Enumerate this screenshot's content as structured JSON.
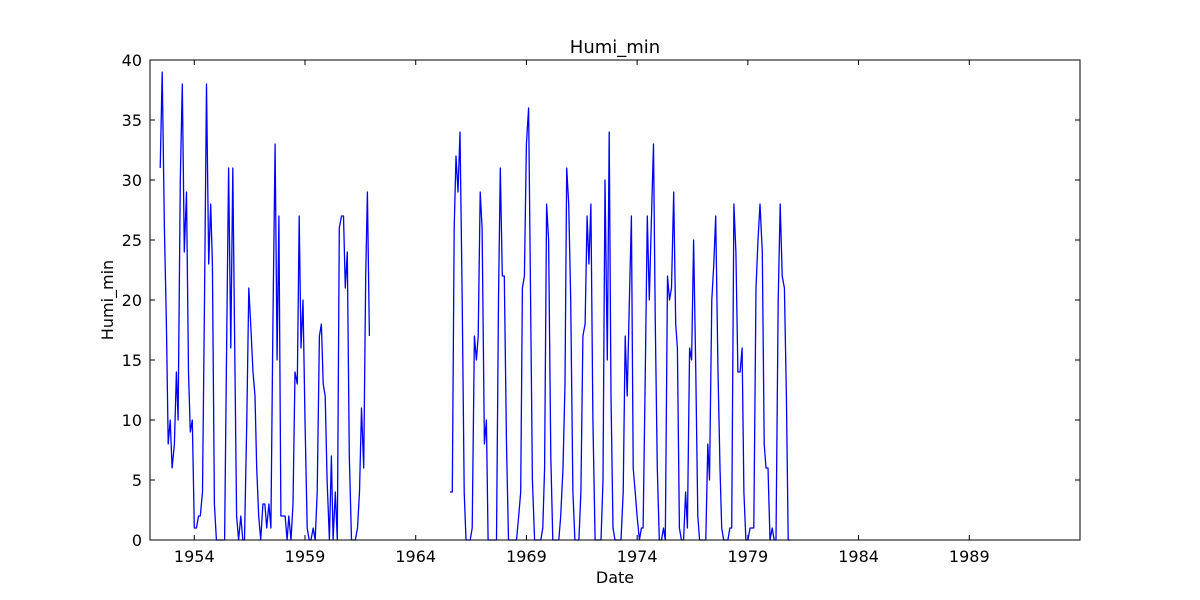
{
  "chart_data": {
    "type": "line",
    "title": "Humi_min",
    "xlabel": "Date",
    "ylabel": "Humi_min",
    "x_units": "year",
    "xlim": [
      1952.0,
      1994.0
    ],
    "ylim": [
      0,
      40
    ],
    "x_ticks": [
      1954,
      1959,
      1964,
      1969,
      1974,
      1979,
      1984,
      1989
    ],
    "y_ticks": [
      0,
      5,
      10,
      15,
      20,
      25,
      30,
      35,
      40
    ],
    "grid": false,
    "legend": "none",
    "color": "#0000ff",
    "series": [
      {
        "segments": [
          [
            [
              1952.46,
              31
            ],
            [
              1952.55,
              39
            ],
            [
              1952.65,
              26
            ],
            [
              1952.74,
              18
            ],
            [
              1952.82,
              8
            ],
            [
              1952.91,
              10
            ],
            [
              1953.0,
              6
            ],
            [
              1953.1,
              8
            ],
            [
              1953.19,
              14
            ],
            [
              1953.27,
              10
            ],
            [
              1953.37,
              30
            ],
            [
              1953.46,
              38
            ],
            [
              1953.55,
              24
            ],
            [
              1953.65,
              29
            ],
            [
              1953.74,
              14
            ],
            [
              1953.82,
              9
            ],
            [
              1953.91,
              10
            ],
            [
              1954.0,
              1
            ],
            [
              1954.1,
              1
            ],
            [
              1954.19,
              2
            ],
            [
              1954.27,
              2
            ],
            [
              1954.37,
              4
            ],
            [
              1954.46,
              20
            ],
            [
              1954.55,
              38
            ],
            [
              1954.65,
              23
            ],
            [
              1954.74,
              28
            ],
            [
              1954.82,
              23
            ],
            [
              1954.91,
              3
            ],
            [
              1955.0,
              0
            ],
            [
              1955.1,
              0
            ],
            [
              1955.19,
              0
            ],
            [
              1955.27,
              0
            ],
            [
              1955.37,
              0
            ],
            [
              1955.46,
              16
            ],
            [
              1955.55,
              31
            ],
            [
              1955.65,
              16
            ],
            [
              1955.74,
              31
            ],
            [
              1955.82,
              17
            ],
            [
              1955.91,
              2
            ],
            [
              1956.0,
              0
            ],
            [
              1956.1,
              2
            ],
            [
              1956.19,
              0
            ],
            [
              1956.27,
              0
            ],
            [
              1956.37,
              10
            ],
            [
              1956.46,
              21
            ],
            [
              1956.55,
              18
            ],
            [
              1956.65,
              14
            ],
            [
              1956.74,
              12
            ],
            [
              1956.82,
              6
            ],
            [
              1956.91,
              2
            ],
            [
              1957.0,
              0
            ],
            [
              1957.1,
              3
            ],
            [
              1957.19,
              3
            ],
            [
              1957.27,
              1
            ],
            [
              1957.37,
              3
            ],
            [
              1957.46,
              1
            ],
            [
              1957.55,
              18
            ],
            [
              1957.65,
              33
            ],
            [
              1957.74,
              15
            ],
            [
              1957.82,
              27
            ],
            [
              1957.91,
              2
            ],
            [
              1958.0,
              2
            ],
            [
              1958.1,
              2
            ],
            [
              1958.19,
              0
            ],
            [
              1958.27,
              2
            ],
            [
              1958.37,
              0
            ],
            [
              1958.46,
              3
            ],
            [
              1958.55,
              14
            ],
            [
              1958.65,
              13
            ],
            [
              1958.74,
              27
            ],
            [
              1958.82,
              16
            ],
            [
              1958.91,
              20
            ],
            [
              1959.0,
              10
            ],
            [
              1959.1,
              1
            ],
            [
              1959.19,
              0
            ],
            [
              1959.27,
              0
            ],
            [
              1959.37,
              1
            ],
            [
              1959.46,
              0
            ],
            [
              1959.55,
              4
            ],
            [
              1959.65,
              17
            ],
            [
              1959.74,
              18
            ],
            [
              1959.82,
              13
            ],
            [
              1959.91,
              12
            ],
            [
              1960.0,
              5
            ],
            [
              1960.1,
              0
            ],
            [
              1960.19,
              7
            ],
            [
              1960.27,
              0
            ],
            [
              1960.37,
              4
            ],
            [
              1960.46,
              0
            ],
            [
              1960.55,
              26
            ],
            [
              1960.65,
              27
            ],
            [
              1960.74,
              27
            ],
            [
              1960.82,
              21
            ],
            [
              1960.91,
              24
            ],
            [
              1961.0,
              7
            ],
            [
              1961.1,
              0
            ],
            [
              1961.19,
              0
            ],
            [
              1961.27,
              0
            ],
            [
              1961.37,
              1
            ],
            [
              1961.46,
              4
            ],
            [
              1961.55,
              11
            ],
            [
              1961.65,
              6
            ],
            [
              1961.74,
              22
            ],
            [
              1961.82,
              29
            ],
            [
              1961.91,
              17
            ]
          ],
          [
            [
              1965.55,
              4
            ],
            [
              1965.65,
              4
            ],
            [
              1965.74,
              26
            ],
            [
              1965.82,
              32
            ],
            [
              1965.91,
              29
            ],
            [
              1966.0,
              34
            ],
            [
              1966.1,
              20
            ],
            [
              1966.19,
              4
            ],
            [
              1966.27,
              0
            ],
            [
              1966.37,
              0
            ],
            [
              1966.46,
              0
            ],
            [
              1966.55,
              1
            ],
            [
              1966.65,
              17
            ],
            [
              1966.74,
              15
            ],
            [
              1966.82,
              17
            ],
            [
              1966.91,
              29
            ],
            [
              1967.0,
              26
            ],
            [
              1967.1,
              8
            ],
            [
              1967.19,
              10
            ],
            [
              1967.27,
              0
            ],
            [
              1967.37,
              0
            ],
            [
              1967.46,
              0
            ],
            [
              1967.55,
              0
            ],
            [
              1967.65,
              0
            ],
            [
              1967.74,
              20
            ],
            [
              1967.82,
              31
            ],
            [
              1967.91,
              22
            ],
            [
              1968.0,
              22
            ],
            [
              1968.1,
              8
            ],
            [
              1968.19,
              0
            ],
            [
              1968.27,
              0
            ],
            [
              1968.37,
              0
            ],
            [
              1968.46,
              0
            ],
            [
              1968.55,
              0
            ],
            [
              1968.65,
              2
            ],
            [
              1968.74,
              4
            ],
            [
              1968.82,
              21
            ],
            [
              1968.91,
              22
            ],
            [
              1969.0,
              33
            ],
            [
              1969.1,
              36
            ],
            [
              1969.19,
              20
            ],
            [
              1969.27,
              5
            ],
            [
              1969.37,
              0
            ],
            [
              1969.46,
              0
            ],
            [
              1969.55,
              0
            ],
            [
              1969.65,
              0
            ],
            [
              1969.74,
              1
            ],
            [
              1969.82,
              6
            ],
            [
              1969.91,
              28
            ],
            [
              1970.0,
              25
            ],
            [
              1970.1,
              7
            ],
            [
              1970.19,
              0
            ],
            [
              1970.27,
              0
            ],
            [
              1970.37,
              0
            ],
            [
              1970.46,
              0
            ],
            [
              1970.55,
              2
            ],
            [
              1970.65,
              6
            ],
            [
              1970.74,
              13
            ],
            [
              1970.82,
              31
            ],
            [
              1970.91,
              28
            ],
            [
              1971.0,
              20
            ],
            [
              1971.1,
              4
            ],
            [
              1971.19,
              0
            ],
            [
              1971.27,
              0
            ],
            [
              1971.37,
              0
            ],
            [
              1971.46,
              4
            ],
            [
              1971.55,
              17
            ],
            [
              1971.65,
              18
            ],
            [
              1971.74,
              27
            ],
            [
              1971.82,
              23
            ],
            [
              1971.91,
              28
            ],
            [
              1972.0,
              10
            ],
            [
              1972.1,
              0
            ],
            [
              1972.19,
              0
            ],
            [
              1972.27,
              0
            ],
            [
              1972.37,
              0
            ],
            [
              1972.46,
              5
            ],
            [
              1972.55,
              30
            ],
            [
              1972.65,
              15
            ],
            [
              1972.74,
              34
            ],
            [
              1972.82,
              12
            ],
            [
              1972.91,
              1
            ],
            [
              1973.0,
              0
            ],
            [
              1973.1,
              0
            ],
            [
              1973.19,
              0
            ],
            [
              1973.27,
              0
            ],
            [
              1973.37,
              4
            ],
            [
              1973.46,
              17
            ],
            [
              1973.55,
              12
            ],
            [
              1973.65,
              20
            ],
            [
              1973.74,
              27
            ],
            [
              1973.82,
              6
            ],
            [
              1973.91,
              4
            ],
            [
              1974.0,
              2
            ],
            [
              1974.1,
              0
            ],
            [
              1974.19,
              1
            ],
            [
              1974.27,
              1
            ],
            [
              1974.37,
              14
            ],
            [
              1974.46,
              27
            ],
            [
              1974.55,
              20
            ],
            [
              1974.65,
              27
            ],
            [
              1974.74,
              33
            ],
            [
              1974.82,
              18
            ],
            [
              1974.91,
              6
            ],
            [
              1975.0,
              0
            ],
            [
              1975.1,
              0
            ],
            [
              1975.19,
              1
            ],
            [
              1975.27,
              0
            ],
            [
              1975.37,
              22
            ],
            [
              1975.46,
              20
            ],
            [
              1975.55,
              21
            ],
            [
              1975.65,
              29
            ],
            [
              1975.74,
              18
            ],
            [
              1975.82,
              16
            ],
            [
              1975.91,
              1
            ],
            [
              1976.0,
              0
            ],
            [
              1976.1,
              0
            ],
            [
              1976.19,
              4
            ],
            [
              1976.27,
              1
            ],
            [
              1976.37,
              16
            ],
            [
              1976.46,
              15
            ],
            [
              1976.55,
              25
            ],
            [
              1976.65,
              14
            ],
            [
              1976.74,
              2
            ],
            [
              1976.82,
              0
            ],
            [
              1976.91,
              0
            ],
            [
              1977.0,
              0
            ],
            [
              1977.1,
              0
            ],
            [
              1977.19,
              8
            ],
            [
              1977.27,
              5
            ],
            [
              1977.37,
              20
            ],
            [
              1977.46,
              23
            ],
            [
              1977.55,
              27
            ],
            [
              1977.65,
              14
            ],
            [
              1977.74,
              6
            ],
            [
              1977.82,
              1
            ],
            [
              1977.91,
              0
            ],
            [
              1978.0,
              0
            ],
            [
              1978.1,
              0
            ],
            [
              1978.19,
              1
            ],
            [
              1978.27,
              1
            ],
            [
              1978.37,
              28
            ],
            [
              1978.46,
              24
            ],
            [
              1978.55,
              14
            ],
            [
              1978.65,
              14
            ],
            [
              1978.74,
              16
            ],
            [
              1978.82,
              4
            ],
            [
              1978.91,
              0
            ],
            [
              1979.0,
              0
            ],
            [
              1979.1,
              1
            ],
            [
              1979.19,
              1
            ],
            [
              1979.27,
              1
            ],
            [
              1979.37,
              21
            ],
            [
              1979.46,
              25
            ],
            [
              1979.55,
              28
            ],
            [
              1979.65,
              24
            ],
            [
              1979.74,
              8
            ],
            [
              1979.82,
              6
            ],
            [
              1979.91,
              6
            ],
            [
              1980.0,
              0
            ],
            [
              1980.1,
              1
            ],
            [
              1980.19,
              0
            ],
            [
              1980.27,
              0
            ],
            [
              1980.37,
              20
            ],
            [
              1980.46,
              28
            ],
            [
              1980.55,
              22
            ],
            [
              1980.65,
              21
            ],
            [
              1980.74,
              12
            ],
            [
              1980.82,
              0
            ],
            [
              1980.91,
              0
            ]
          ]
        ]
      }
    ]
  }
}
